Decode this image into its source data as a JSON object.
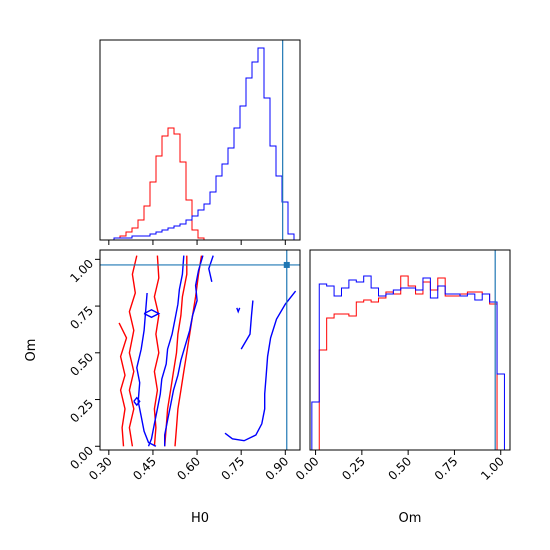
{
  "chart_data": [
    {
      "type": "histogram",
      "panel": "H0 marginal",
      "xlabel": "",
      "ylabel": "",
      "xlim": [
        0.22,
        0.97
      ],
      "ylim": [
        0,
        1.0
      ],
      "truth": 0.905,
      "bin_width": 0.0225,
      "series": [
        {
          "color": "#ff0000",
          "bin_starts": [
            0.25,
            0.2725,
            0.295,
            0.3175,
            0.34,
            0.3625,
            0.385,
            0.4075,
            0.43,
            0.4525,
            0.475,
            0.4975,
            0.52,
            0.5425,
            0.565,
            0.5875,
            0.61
          ],
          "heights": [
            0.0,
            0.01,
            0.02,
            0.04,
            0.06,
            0.1,
            0.17,
            0.29,
            0.42,
            0.52,
            0.56,
            0.53,
            0.39,
            0.2,
            0.05,
            0.01,
            0.0
          ]
        },
        {
          "color": "#0000ff",
          "bin_starts": [
            0.25,
            0.2725,
            0.295,
            0.3175,
            0.34,
            0.3625,
            0.385,
            0.4075,
            0.43,
            0.4525,
            0.475,
            0.4975,
            0.52,
            0.5425,
            0.565,
            0.5875,
            0.61,
            0.6325,
            0.655,
            0.6775,
            0.7,
            0.7225,
            0.745,
            0.7675,
            0.79,
            0.8125,
            0.835,
            0.8575,
            0.88,
            0.9025,
            0.925,
            0.9475
          ],
          "heights": [
            0.0,
            0.01,
            0.01,
            0.01,
            0.02,
            0.02,
            0.02,
            0.03,
            0.04,
            0.05,
            0.06,
            0.07,
            0.08,
            0.1,
            0.12,
            0.15,
            0.18,
            0.24,
            0.32,
            0.38,
            0.46,
            0.56,
            0.67,
            0.81,
            0.89,
            0.96,
            0.71,
            0.47,
            0.32,
            0.19,
            0.03,
            0.0
          ]
        }
      ]
    },
    {
      "type": "contour",
      "panel": "H0 vs Om",
      "xlabel": "H0",
      "ylabel": "Om",
      "xlim": [
        0.27,
        0.95
      ],
      "ylim": [
        -0.02,
        1.05
      ],
      "xticks": [
        "0.30",
        "0.45",
        "0.60",
        "0.75",
        "0.90"
      ],
      "yticks": [
        "0.00",
        "0.25",
        "0.50",
        "0.75",
        "1.00"
      ],
      "truth": {
        "x": 0.905,
        "y": 0.97
      },
      "series": [
        {
          "color": "#ff0000",
          "contours": [
            [
              [
                0.395,
                1.02
              ],
              [
                0.38,
                0.92
              ],
              [
                0.39,
                0.82
              ],
              [
                0.37,
                0.72
              ],
              [
                0.385,
                0.62
              ],
              [
                0.37,
                0.5
              ],
              [
                0.385,
                0.4
              ],
              [
                0.37,
                0.3
              ],
              [
                0.385,
                0.2
              ],
              [
                0.37,
                0.1
              ],
              [
                0.38,
                0.0
              ]
            ],
            [
              [
                0.335,
                0.66
              ],
              [
                0.36,
                0.58
              ],
              [
                0.34,
                0.48
              ],
              [
                0.355,
                0.38
              ],
              [
                0.34,
                0.3
              ],
              [
                0.355,
                0.2
              ],
              [
                0.345,
                0.1
              ],
              [
                0.35,
                0.0
              ]
            ],
            [
              [
                0.465,
                1.02
              ],
              [
                0.47,
                0.9
              ],
              [
                0.455,
                0.8
              ],
              [
                0.47,
                0.7
              ],
              [
                0.46,
                0.6
              ],
              [
                0.47,
                0.5
              ],
              [
                0.455,
                0.4
              ],
              [
                0.465,
                0.3
              ],
              [
                0.455,
                0.2
              ],
              [
                0.46,
                0.1
              ],
              [
                0.455,
                0.0
              ]
            ],
            [
              [
                0.565,
                1.02
              ],
              [
                0.565,
                0.92
              ],
              [
                0.55,
                0.8
              ],
              [
                0.545,
                0.7
              ],
              [
                0.535,
                0.6
              ],
              [
                0.53,
                0.5
              ],
              [
                0.52,
                0.4
              ],
              [
                0.51,
                0.3
              ],
              [
                0.5,
                0.2
              ],
              [
                0.495,
                0.1
              ],
              [
                0.49,
                0.0
              ]
            ],
            [
              [
                0.615,
                1.02
              ],
              [
                0.605,
                0.92
              ],
              [
                0.595,
                0.8
              ],
              [
                0.585,
                0.7
              ],
              [
                0.575,
                0.6
              ],
              [
                0.565,
                0.5
              ],
              [
                0.555,
                0.4
              ],
              [
                0.545,
                0.3
              ],
              [
                0.535,
                0.2
              ],
              [
                0.53,
                0.1
              ],
              [
                0.525,
                0.0
              ]
            ]
          ]
        },
        {
          "color": "#0000ff",
          "contours": [
            [
              [
                0.555,
                1.02
              ],
              [
                0.55,
                0.92
              ],
              [
                0.54,
                0.84
              ],
              [
                0.535,
                0.76
              ],
              [
                0.525,
                0.68
              ],
              [
                0.515,
                0.6
              ],
              [
                0.5,
                0.52
              ],
              [
                0.495,
                0.44
              ],
              [
                0.48,
                0.36
              ],
              [
                0.475,
                0.28
              ],
              [
                0.465,
                0.2
              ],
              [
                0.455,
                0.12
              ],
              [
                0.445,
                0.04
              ],
              [
                0.435,
                0.0
              ]
            ],
            [
              [
                0.62,
                1.02
              ],
              [
                0.605,
                0.94
              ],
              [
                0.595,
                0.86
              ],
              [
                0.6,
                0.78
              ],
              [
                0.585,
                0.7
              ],
              [
                0.575,
                0.62
              ],
              [
                0.56,
                0.54
              ],
              [
                0.545,
                0.46
              ],
              [
                0.535,
                0.38
              ],
              [
                0.52,
                0.3
              ],
              [
                0.51,
                0.22
              ],
              [
                0.5,
                0.14
              ],
              [
                0.49,
                0.06
              ],
              [
                0.49,
                0.0
              ]
            ],
            [
              [
                0.43,
                0.82
              ],
              [
                0.425,
                0.72
              ],
              [
                0.42,
                0.62
              ],
              [
                0.41,
                0.52
              ],
              [
                0.395,
                0.42
              ],
              [
                0.405,
                0.34
              ],
              [
                0.4,
                0.24
              ],
              [
                0.41,
                0.16
              ],
              [
                0.42,
                0.08
              ],
              [
                0.435,
                0.02
              ],
              [
                0.46,
                0.0
              ]
            ],
            [
              [
                0.42,
                0.71
              ],
              [
                0.445,
                0.73
              ],
              [
                0.47,
                0.71
              ],
              [
                0.445,
                0.69
              ],
              [
                0.42,
                0.71
              ]
            ],
            [
              [
                0.385,
                0.24
              ],
              [
                0.395,
                0.26
              ],
              [
                0.405,
                0.24
              ],
              [
                0.395,
                0.22
              ],
              [
                0.385,
                0.24
              ]
            ],
            [
              [
                0.935,
                0.83
              ],
              [
                0.9,
                0.76
              ],
              [
                0.87,
                0.68
              ],
              [
                0.85,
                0.58
              ],
              [
                0.84,
                0.48
              ],
              [
                0.835,
                0.38
              ],
              [
                0.83,
                0.28
              ],
              [
                0.83,
                0.2
              ],
              [
                0.82,
                0.12
              ],
              [
                0.8,
                0.06
              ],
              [
                0.76,
                0.03
              ],
              [
                0.72,
                0.04
              ],
              [
                0.695,
                0.07
              ]
            ],
            [
              [
                0.655,
                1.02
              ],
              [
                0.64,
                0.95
              ],
              [
                0.65,
                0.88
              ]
            ],
            [
              [
                0.75,
                0.52
              ],
              [
                0.78,
                0.6
              ],
              [
                0.785,
                0.7
              ],
              [
                0.79,
                0.78
              ]
            ],
            [
              [
                0.735,
                0.74
              ],
              [
                0.74,
                0.72
              ],
              [
                0.745,
                0.74
              ]
            ]
          ]
        }
      ]
    },
    {
      "type": "histogram",
      "panel": "Om marginal",
      "xlabel": "Om",
      "ylabel": "",
      "xlim": [
        -0.03,
        1.05
      ],
      "ylim": [
        0,
        1.0
      ],
      "xticks": [
        "0.00",
        "0.25",
        "0.50",
        "0.75",
        "1.00"
      ],
      "truth": 0.97,
      "bin_width": 0.04,
      "series": [
        {
          "color": "#ff0000",
          "bin_starts": [
            -0.02,
            0.02,
            0.06,
            0.1,
            0.14,
            0.18,
            0.22,
            0.26,
            0.3,
            0.34,
            0.38,
            0.42,
            0.46,
            0.5,
            0.54,
            0.58,
            0.62,
            0.66,
            0.7,
            0.74,
            0.78,
            0.82,
            0.86,
            0.9,
            0.94,
            0.98
          ],
          "heights": [
            0.0,
            0.5,
            0.66,
            0.68,
            0.68,
            0.67,
            0.74,
            0.75,
            0.74,
            0.76,
            0.79,
            0.78,
            0.87,
            0.82,
            0.78,
            0.84,
            0.8,
            0.86,
            0.77,
            0.77,
            0.78,
            0.79,
            0.79,
            0.78,
            0.73,
            0.0
          ]
        },
        {
          "color": "#0000ff",
          "bin_starts": [
            -0.02,
            0.02,
            0.06,
            0.1,
            0.14,
            0.18,
            0.22,
            0.26,
            0.3,
            0.34,
            0.38,
            0.42,
            0.46,
            0.5,
            0.54,
            0.58,
            0.62,
            0.66,
            0.7,
            0.74,
            0.78,
            0.82,
            0.86,
            0.9,
            0.94,
            0.98
          ],
          "heights": [
            0.24,
            0.83,
            0.82,
            0.77,
            0.81,
            0.85,
            0.84,
            0.87,
            0.81,
            0.77,
            0.78,
            0.8,
            0.81,
            0.81,
            0.8,
            0.86,
            0.76,
            0.82,
            0.78,
            0.78,
            0.77,
            0.78,
            0.75,
            0.78,
            0.74,
            0.38
          ]
        }
      ]
    }
  ]
}
